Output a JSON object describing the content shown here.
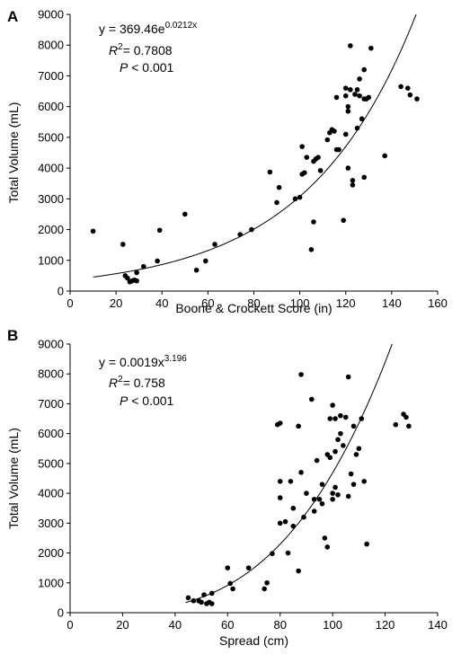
{
  "chart_data": [
    {
      "type": "scatter",
      "panel_label": "A",
      "xlabel": "Boone & Crockett Score (in)",
      "ylabel": "Total Volume (mL)",
      "xlim": [
        0,
        160
      ],
      "ylim": [
        0,
        9000
      ],
      "xticks": [
        0,
        20,
        40,
        60,
        80,
        100,
        120,
        140,
        160
      ],
      "yticks": [
        0,
        1000,
        2000,
        3000,
        4000,
        5000,
        6000,
        7000,
        8000,
        9000
      ],
      "grid": false,
      "annotation": {
        "equation_base": "y = 369.46e",
        "equation_exp": "0.0212x",
        "r2_label": "R",
        "r2_sup": "2",
        "r2_value": "= 0.7808",
        "p_label": "P",
        "p_value": " < 0.001"
      },
      "fit": {
        "type": "exponential",
        "a": 369.46,
        "b": 0.0212,
        "x_start": 10
      },
      "points": [
        [
          10,
          1950
        ],
        [
          23,
          1520
        ],
        [
          24,
          500
        ],
        [
          25,
          420
        ],
        [
          26,
          300
        ],
        [
          27,
          330
        ],
        [
          28,
          360
        ],
        [
          29,
          600
        ],
        [
          29,
          330
        ],
        [
          32,
          800
        ],
        [
          38,
          980
        ],
        [
          39,
          1980
        ],
        [
          50,
          2500
        ],
        [
          55,
          680
        ],
        [
          59,
          980
        ],
        [
          63,
          1520
        ],
        [
          74,
          1840
        ],
        [
          79,
          2000
        ],
        [
          87,
          3870
        ],
        [
          90,
          2880
        ],
        [
          91,
          3370
        ],
        [
          98,
          3000
        ],
        [
          100,
          3050
        ],
        [
          101,
          4700
        ],
        [
          101,
          3800
        ],
        [
          102,
          3850
        ],
        [
          103,
          4350
        ],
        [
          105,
          1350
        ],
        [
          106,
          2250
        ],
        [
          106,
          4220
        ],
        [
          107,
          4300
        ],
        [
          108,
          4350
        ],
        [
          109,
          3920
        ],
        [
          112,
          4920
        ],
        [
          113,
          5150
        ],
        [
          114,
          5250
        ],
        [
          115,
          5200
        ],
        [
          116,
          4600
        ],
        [
          116,
          6300
        ],
        [
          117,
          4600
        ],
        [
          119,
          2300
        ],
        [
          120,
          5100
        ],
        [
          120,
          6350
        ],
        [
          120,
          6600
        ],
        [
          121,
          4000
        ],
        [
          121,
          6000
        ],
        [
          121,
          5850
        ],
        [
          122,
          7980
        ],
        [
          122,
          6550
        ],
        [
          123,
          3600
        ],
        [
          123,
          3450
        ],
        [
          124,
          6400
        ],
        [
          125,
          5300
        ],
        [
          125,
          6550
        ],
        [
          126,
          6900
        ],
        [
          126,
          6350
        ],
        [
          127,
          5600
        ],
        [
          128,
          6250
        ],
        [
          128,
          7200
        ],
        [
          128,
          3700
        ],
        [
          129,
          6250
        ],
        [
          130,
          6300
        ],
        [
          131,
          7900
        ],
        [
          137,
          4400
        ],
        [
          144,
          6650
        ],
        [
          147,
          6600
        ],
        [
          148,
          6380
        ],
        [
          151,
          6250
        ]
      ]
    },
    {
      "type": "scatter",
      "panel_label": "B",
      "xlabel": "Spread (cm)",
      "ylabel": "Total Volume (mL)",
      "xlim": [
        0,
        140
      ],
      "ylim": [
        0,
        9000
      ],
      "xticks": [
        0,
        20,
        40,
        60,
        80,
        100,
        120,
        140
      ],
      "yticks": [
        0,
        1000,
        2000,
        3000,
        4000,
        5000,
        6000,
        7000,
        8000,
        9000
      ],
      "grid": false,
      "annotation": {
        "equation_base": "y = 0.0019x",
        "equation_exp": "3.196",
        "r2_label": "R",
        "r2_sup": "2",
        "r2_value": "= 0.758",
        "p_label": "P",
        "p_value": " < 0.001"
      },
      "fit": {
        "type": "power",
        "a": 0.0019,
        "b": 3.196,
        "x_start": 44
      },
      "points": [
        [
          45,
          500
        ],
        [
          47,
          400
        ],
        [
          49,
          400
        ],
        [
          50,
          350
        ],
        [
          51,
          600
        ],
        [
          52,
          300
        ],
        [
          53,
          350
        ],
        [
          54,
          300
        ],
        [
          54,
          650
        ],
        [
          60,
          1500
        ],
        [
          61,
          980
        ],
        [
          62,
          800
        ],
        [
          68,
          1500
        ],
        [
          74,
          800
        ],
        [
          75,
          1000
        ],
        [
          77,
          1980
        ],
        [
          79,
          6300
        ],
        [
          80,
          6350
        ],
        [
          80,
          4400
        ],
        [
          80,
          3850
        ],
        [
          80,
          3000
        ],
        [
          82,
          3050
        ],
        [
          83,
          2000
        ],
        [
          84,
          4400
        ],
        [
          85,
          2900
        ],
        [
          85,
          3500
        ],
        [
          87,
          6250
        ],
        [
          87,
          1400
        ],
        [
          88,
          7980
        ],
        [
          88,
          4700
        ],
        [
          89,
          3200
        ],
        [
          90,
          4000
        ],
        [
          92,
          7150
        ],
        [
          93,
          3800
        ],
        [
          93,
          3400
        ],
        [
          94,
          5100
        ],
        [
          95,
          3800
        ],
        [
          96,
          3650
        ],
        [
          96,
          4300
        ],
        [
          97,
          2500
        ],
        [
          98,
          2200
        ],
        [
          98,
          5300
        ],
        [
          99,
          6500
        ],
        [
          99,
          5200
        ],
        [
          100,
          6950
        ],
        [
          100,
          4000
        ],
        [
          100,
          3800
        ],
        [
          101,
          6500
        ],
        [
          101,
          5400
        ],
        [
          101,
          4200
        ],
        [
          102,
          5800
        ],
        [
          102,
          3950
        ],
        [
          103,
          6600
        ],
        [
          103,
          6000
        ],
        [
          104,
          5600
        ],
        [
          105,
          6550
        ],
        [
          106,
          7900
        ],
        [
          106,
          3900
        ],
        [
          107,
          4650
        ],
        [
          108,
          6250
        ],
        [
          108,
          4300
        ],
        [
          109,
          5300
        ],
        [
          110,
          5500
        ],
        [
          111,
          6500
        ],
        [
          112,
          4400
        ],
        [
          113,
          2300
        ],
        [
          124,
          6300
        ],
        [
          127,
          6650
        ],
        [
          128,
          6550
        ],
        [
          129,
          6250
        ]
      ]
    }
  ]
}
